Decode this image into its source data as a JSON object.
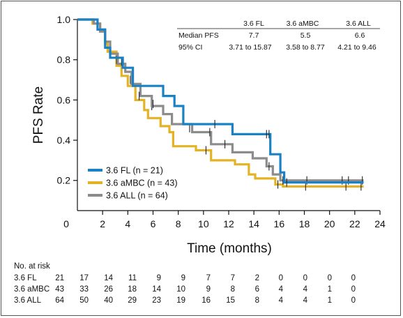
{
  "chart_data": {
    "type": "line",
    "subtype": "kaplan-meier step",
    "xlabel": "Time (months)",
    "ylabel": "PFS Rate",
    "xlim": [
      0,
      24
    ],
    "ylim": [
      0.05,
      1.0
    ],
    "xticks": [
      "0",
      "2",
      "4",
      "6",
      "8",
      "10",
      "12",
      "14",
      "16",
      "18",
      "20",
      "22",
      "24"
    ],
    "yticks": [
      "0.2",
      "0.4",
      "0.6",
      "0.8",
      "1.0"
    ],
    "grid": false,
    "legend_position": "bottom-left",
    "series": [
      {
        "name": "3.6 FL (n = 21)",
        "color": "#1a82c4",
        "steps": [
          [
            0,
            1.0
          ],
          [
            1,
            1.0
          ],
          [
            1.6,
            0.95
          ],
          [
            2.2,
            0.86
          ],
          [
            2.6,
            0.81
          ],
          [
            3.6,
            0.76
          ],
          [
            4.4,
            0.67
          ],
          [
            6.8,
            0.62
          ],
          [
            7.7,
            0.57
          ],
          [
            8.4,
            0.48
          ],
          [
            12.3,
            0.43
          ],
          [
            15.3,
            0.33
          ],
          [
            16.1,
            0.24
          ],
          [
            16.4,
            0.19
          ],
          [
            22.7,
            0.19
          ]
        ],
        "censor": [
          [
            15,
            0.43
          ],
          [
            15.2,
            0.43
          ],
          [
            10.9,
            0.48
          ],
          [
            16.6,
            0.19
          ]
        ]
      },
      {
        "name": "3.6 aMBC (n = 43)",
        "color": "#e4b325",
        "steps": [
          [
            0,
            1.0
          ],
          [
            1,
            1.0
          ],
          [
            1.2,
            0.98
          ],
          [
            1.8,
            0.95
          ],
          [
            2.2,
            0.88
          ],
          [
            2.4,
            0.84
          ],
          [
            3.1,
            0.77
          ],
          [
            3.5,
            0.72
          ],
          [
            4.0,
            0.67
          ],
          [
            4.6,
            0.6
          ],
          [
            5.3,
            0.55
          ],
          [
            5.6,
            0.51
          ],
          [
            6.6,
            0.47
          ],
          [
            7.3,
            0.44
          ],
          [
            7.6,
            0.37
          ],
          [
            9.4,
            0.35
          ],
          [
            10.6,
            0.3
          ],
          [
            12.5,
            0.28
          ],
          [
            13.6,
            0.23
          ],
          [
            14.1,
            0.21
          ],
          [
            15.7,
            0.18
          ],
          [
            16.3,
            0.17
          ],
          [
            22.7,
            0.17
          ]
        ],
        "censor": [
          [
            3.1,
            0.8
          ],
          [
            4.2,
            0.7
          ],
          [
            5.9,
            0.57
          ],
          [
            10.2,
            0.35
          ],
          [
            15.9,
            0.18
          ],
          [
            18.1,
            0.17
          ],
          [
            21.3,
            0.17
          ],
          [
            22.5,
            0.17
          ]
        ]
      },
      {
        "name": "3.6 ALL (n = 64)",
        "color": "#8c8c8c",
        "steps": [
          [
            0,
            1.0
          ],
          [
            1,
            1.0
          ],
          [
            1.3,
            0.98
          ],
          [
            1.8,
            0.94
          ],
          [
            2.2,
            0.89
          ],
          [
            2.6,
            0.83
          ],
          [
            3.2,
            0.78
          ],
          [
            3.8,
            0.74
          ],
          [
            4.3,
            0.68
          ],
          [
            5.0,
            0.62
          ],
          [
            5.9,
            0.57
          ],
          [
            6.8,
            0.53
          ],
          [
            7.5,
            0.48
          ],
          [
            9.1,
            0.44
          ],
          [
            10.6,
            0.38
          ],
          [
            12.3,
            0.34
          ],
          [
            13.9,
            0.31
          ],
          [
            15.0,
            0.27
          ],
          [
            15.5,
            0.23
          ],
          [
            16.1,
            0.2
          ],
          [
            22.7,
            0.2
          ]
        ],
        "censor": [
          [
            3.5,
            0.79
          ],
          [
            4.9,
            0.62
          ],
          [
            6.0,
            0.58
          ],
          [
            8.9,
            0.46
          ],
          [
            10.5,
            0.44
          ],
          [
            11.7,
            0.38
          ],
          [
            15.2,
            0.27
          ],
          [
            16.3,
            0.2
          ],
          [
            18.2,
            0.2
          ],
          [
            21.0,
            0.2
          ],
          [
            21.5,
            0.2
          ],
          [
            22.6,
            0.2
          ]
        ]
      }
    ],
    "stats_table": {
      "columns": [
        "3.6 FL",
        "3.6 aMBC",
        "3.6 ALL"
      ],
      "rows": [
        {
          "label": "Median PFS",
          "values": [
            "7.7",
            "5.5",
            "6.6"
          ]
        },
        {
          "label": "95% CI",
          "values": [
            "3.71 to 15.87",
            "3.58 to 8.77",
            "4.21 to 9.46"
          ]
        }
      ]
    },
    "risk_table": {
      "title": "No. at risk",
      "rows": [
        {
          "label": "3.6 FL",
          "values": [
            "21",
            "17",
            "14",
            "11",
            "9",
            "9",
            "7",
            "7",
            "2",
            "0",
            "0",
            "0",
            "0"
          ]
        },
        {
          "label": "3.6 aMBC",
          "values": [
            "43",
            "33",
            "26",
            "18",
            "14",
            "10",
            "9",
            "8",
            "6",
            "4",
            "4",
            "1",
            "0"
          ]
        },
        {
          "label": "3.6 ALL",
          "values": [
            "64",
            "50",
            "40",
            "29",
            "23",
            "19",
            "16",
            "15",
            "8",
            "4",
            "4",
            "1",
            "0"
          ]
        }
      ]
    }
  }
}
